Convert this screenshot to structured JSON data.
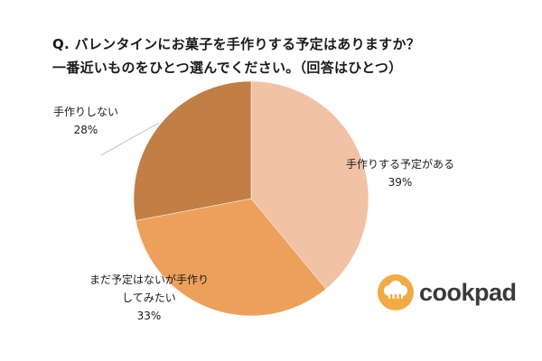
{
  "title_line1": "Q. バレンタインにお菓子を手作りする予定はありますか？",
  "title_line2": "一番近いものをひとつ選んでください。（回答はひとつ）",
  "brand": {
    "name": "cookpad",
    "icon": "chef-hat-icon",
    "accent": "#f0ab45"
  },
  "chart_data": {
    "type": "pie",
    "slices": [
      {
        "label": "手作りする予定がある",
        "value": 39,
        "percent_text": "39%",
        "color": "#f1c2a5"
      },
      {
        "label_lines": [
          "まだ予定はないが手作り",
          "してみたい"
        ],
        "value": 33,
        "percent_text": "33%",
        "color": "#eda05c"
      },
      {
        "label": "手作りしない",
        "value": 28,
        "percent_text": "28%",
        "color": "#c17f45"
      }
    ]
  }
}
